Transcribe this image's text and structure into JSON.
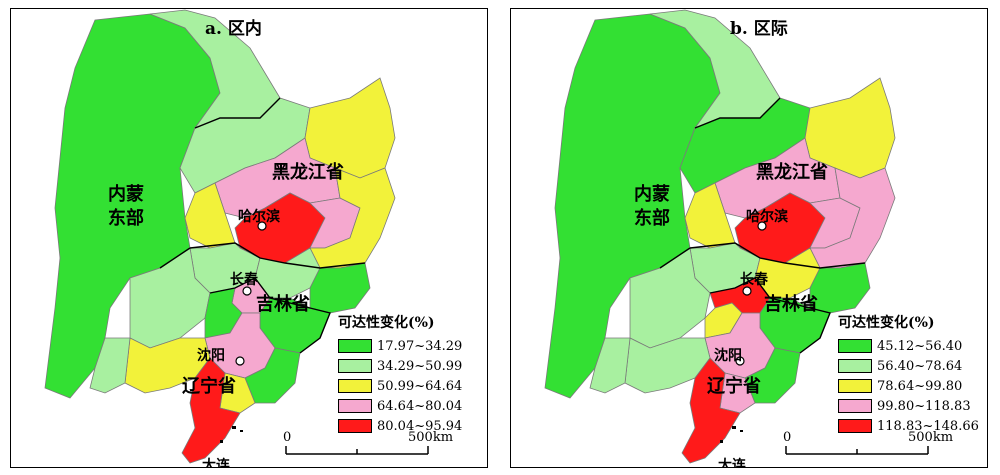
{
  "colors": {
    "class1": "#33e033",
    "class2": "#a8f0a0",
    "class3": "#f2f23a",
    "class4": "#f5a8cf",
    "class5": "#ff1a1a",
    "boundary": "#7a7a7a",
    "outline": "#000000"
  },
  "panels": [
    {
      "title": "a. 区内",
      "legend": {
        "title": "可达性变化(%)",
        "items": [
          {
            "label": "17.97~34.29"
          },
          {
            "label": "34.29~50.99"
          },
          {
            "label": "50.99~64.64"
          },
          {
            "label": "64.64~80.04"
          },
          {
            "label": "80.04~95.94"
          }
        ]
      },
      "scale": {
        "zero": "0",
        "end": "500km"
      }
    },
    {
      "title": "b. 区际",
      "legend": {
        "title": "可达性变化(%)",
        "items": [
          {
            "label": "45.12~56.40"
          },
          {
            "label": "56.40~78.64"
          },
          {
            "label": "78.64~99.80"
          },
          {
            "label": "99.80~118.83"
          },
          {
            "label": "118.83~148.66"
          }
        ]
      },
      "scale": {
        "zero": "0",
        "end": "500km"
      }
    }
  ],
  "labels": {
    "inner_mongolia_1": "内蒙",
    "inner_mongolia_2": "东部",
    "heilongjiang": "黑龙江省",
    "jilin": "吉林省",
    "liaoning": "辽宁省",
    "harbin": "哈尔滨",
    "changchun": "长春",
    "shenyang": "沈阳",
    "dalian": "大连"
  }
}
